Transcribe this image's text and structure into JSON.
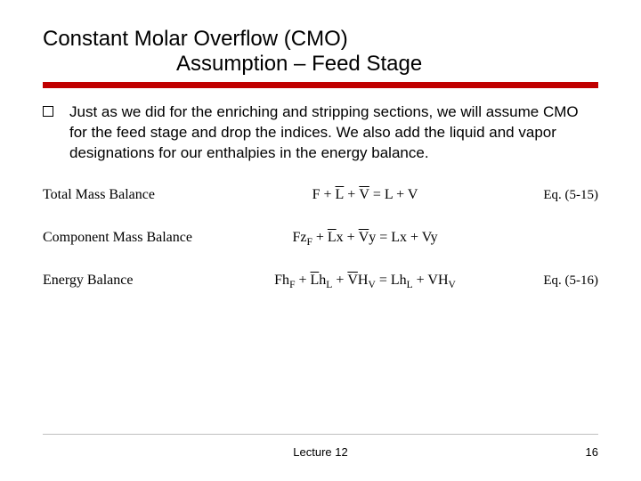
{
  "title": {
    "line1": "Constant Molar Overflow (CMO)",
    "line2": "Assumption – Feed Stage"
  },
  "accent_color": "#c00000",
  "body": {
    "text": "Just as we did for the enriching and stripping sections, we will assume CMO for the feed stage and drop the indices.  We also add the liquid and vapor designations for our enthalpies in the energy balance."
  },
  "equations": [
    {
      "label": "Total Mass Balance",
      "html": "F + <span class=\"ovl\">L</span> + <span class=\"ovl\">V</span> = L + V",
      "ref": "Eq. (5-15)"
    },
    {
      "label": "Component Mass Balance",
      "html": "Fz<sub>F</sub> + <span class=\"ovl\">L</span>x + <span class=\"ovl\">V</span>y = Lx + Vy",
      "ref": ""
    },
    {
      "label": "Energy Balance",
      "html": "Fh<sub>F</sub> + <span class=\"ovl\">L</span>h<sub>L</sub> + <span class=\"ovl\">V</span>H<sub>V</sub> = Lh<sub>L</sub> + VH<sub>V</sub>",
      "ref": "Eq. (5-16)"
    }
  ],
  "footer": {
    "lecture": "Lecture 12",
    "page": "16"
  },
  "style": {
    "title_fontsize": 24,
    "body_fontsize": 17,
    "eq_font": "Times New Roman",
    "background": "#ffffff"
  }
}
